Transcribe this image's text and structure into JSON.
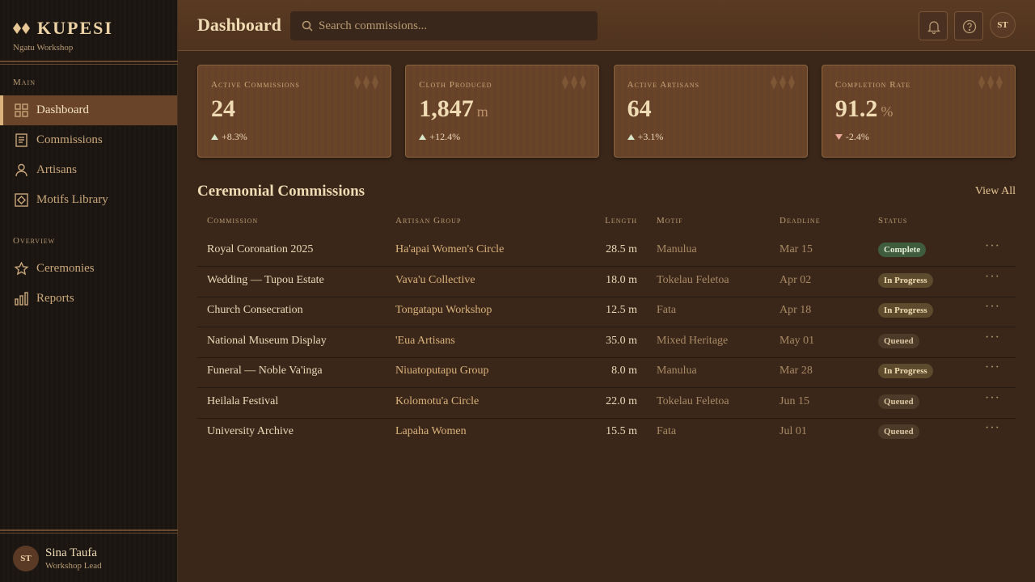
{
  "sidebar": {
    "brand": "KUPESI",
    "subtitle": "Ngatu Workshop",
    "sections": [
      {
        "title": "Main",
        "items": [
          "Dashboard",
          "Commissions",
          "Artisans",
          "Motifs Library"
        ]
      },
      {
        "title": "Overview",
        "items": [
          "Ceremonies",
          "Reports"
        ]
      }
    ],
    "active_item": "Dashboard",
    "user": {
      "initials": "ST",
      "name": "Sina Taufa",
      "role": "Workshop Lead"
    }
  },
  "header": {
    "title": "Dashboard",
    "search_placeholder": "Search commissions...",
    "user_initials": "ST"
  },
  "stats": [
    {
      "label": "Active Commissions",
      "value": "24",
      "change": "+8.3%",
      "trend": "up"
    },
    {
      "label": "Cloth Produced",
      "value": "1,847",
      "unit": "m",
      "change": "+12.4%",
      "trend": "up"
    },
    {
      "label": "Active Artisans",
      "value": "64",
      "change": "+3.1%",
      "trend": "up"
    },
    {
      "label": "Completion Rate",
      "value": "91.2",
      "unit": "%",
      "change": "-2.4%",
      "trend": "down"
    }
  ],
  "table": {
    "title": "Ceremonial Commissions",
    "action": "View All",
    "columns": [
      "Commission",
      "Artisan Group",
      "Length",
      "Motif",
      "Deadline",
      "Status"
    ],
    "rows": [
      [
        "Royal Coronation 2025",
        "Ha'apai Women's Circle",
        "28.5 m",
        "Manulua",
        "Mar 15",
        "Complete"
      ],
      [
        "Wedding — Tupou Estate",
        "Vava'u Collective",
        "18.0 m",
        "Tokelau Feletoa",
        "Apr 02",
        "In Progress"
      ],
      [
        "Church Consecration",
        "Tongatapu Workshop",
        "12.5 m",
        "Fata",
        "Apr 18",
        "In Progress"
      ],
      [
        "National Museum Display",
        "'Eua Artisans",
        "35.0 m",
        "Mixed Heritage",
        "May 01",
        "Queued"
      ],
      [
        "Funeral — Noble Va'inga",
        "Niuatoputapu Group",
        "8.0 m",
        "Manulua",
        "Mar 28",
        "In Progress"
      ],
      [
        "Heilala Festival",
        "Kolomotu'a Circle",
        "22.0 m",
        "Tokelau Feletoa",
        "Jun 15",
        "Queued"
      ],
      [
        "University Archive",
        "Lapaha Women",
        "15.5 m",
        "Fata",
        "Jul 01",
        "Queued"
      ]
    ],
    "status_colors": {
      "Complete": {
        "bg": "#3f5c3c",
        "fg": "#e6ecd8"
      },
      "In Progress": {
        "bg": "#5e4a2c",
        "fg": "#f0dcb4"
      },
      "Queued": {
        "bg": "#4d3a28",
        "fg": "#d9c3a0"
      }
    }
  }
}
